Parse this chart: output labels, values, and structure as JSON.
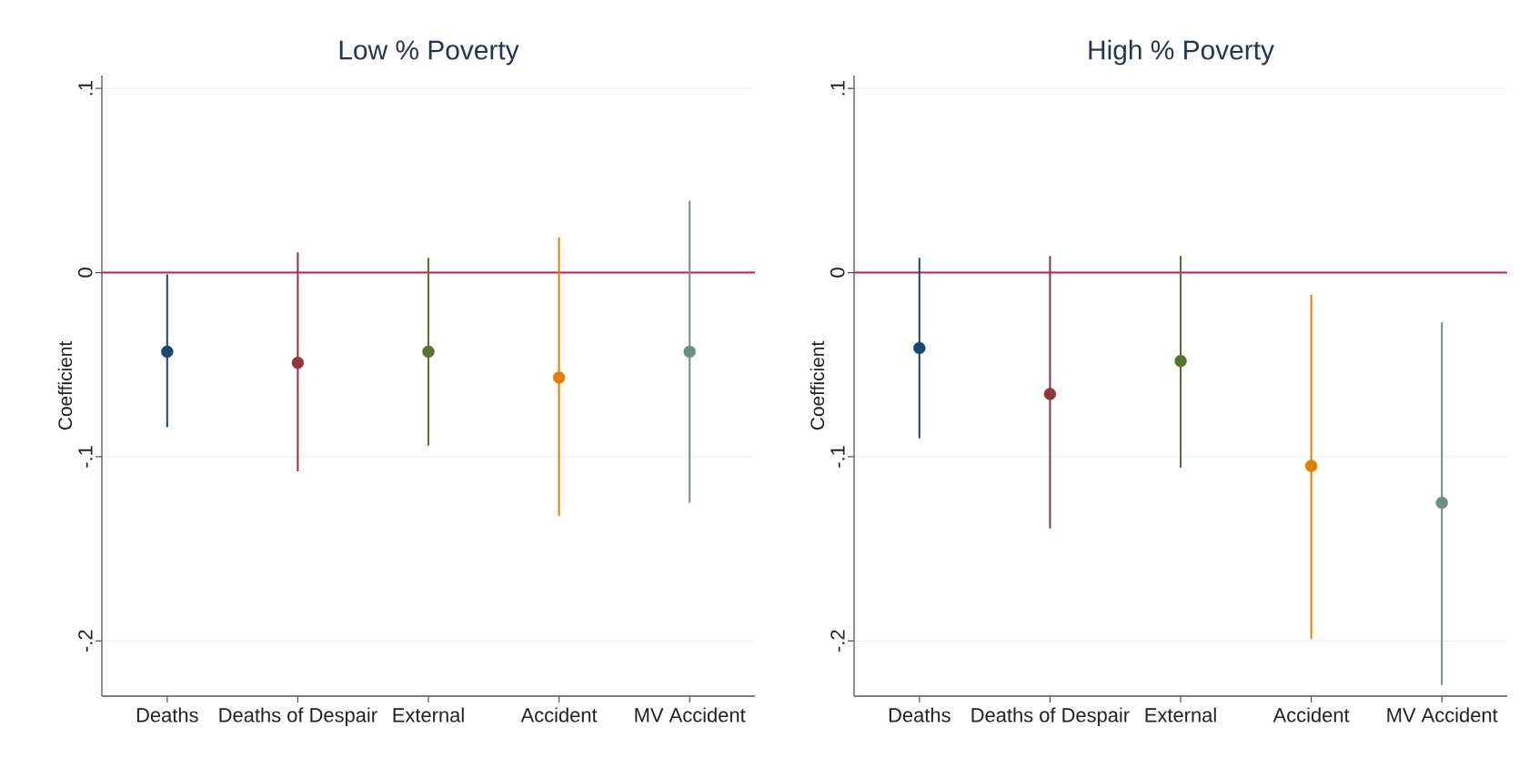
{
  "chart_data": [
    {
      "type": "scatter",
      "title": "Low % Poverty",
      "ylabel": "Coefficient",
      "categories": [
        "Deaths",
        "Deaths of Despair",
        "External",
        "Accident",
        "MV Accident"
      ],
      "values": [
        -0.043,
        -0.049,
        -0.043,
        -0.057,
        -0.043
      ],
      "errors": [
        [
          -0.084,
          -0.001
        ],
        [
          -0.108,
          0.011
        ],
        [
          -0.094,
          0.008
        ],
        [
          -0.132,
          0.019
        ],
        [
          -0.125,
          0.039
        ]
      ],
      "colors": [
        "#1a476f",
        "#90353b",
        "#55752f",
        "#e37e00",
        "#6e8e84"
      ],
      "ylim": [
        -0.23,
        0.107
      ],
      "yticks": [
        {
          "value": -0.2,
          "label": "-.2"
        },
        {
          "value": -0.1,
          "label": "-.1"
        },
        0,
        {
          "value": 0.1,
          "label": ".1"
        }
      ],
      "ref_lines": [
        {
          "axis": "y",
          "value": 0,
          "color": "#c41e4a"
        }
      ],
      "grid": "y",
      "marker": "circle"
    },
    {
      "type": "scatter",
      "title": "High % Poverty",
      "ylabel": "Coefficient",
      "categories": [
        "Deaths",
        "Deaths of Despair",
        "External",
        "Accident",
        "MV Accident"
      ],
      "values": [
        -0.041,
        -0.066,
        -0.048,
        -0.105,
        -0.125
      ],
      "errors": [
        [
          -0.09,
          0.008
        ],
        [
          -0.139,
          0.009
        ],
        [
          -0.106,
          0.009
        ],
        [
          -0.199,
          -0.012
        ],
        [
          -0.224,
          -0.027
        ]
      ],
      "colors": [
        "#1a476f",
        "#90353b",
        "#55752f",
        "#e37e00",
        "#6e8e84"
      ],
      "ylim": [
        -0.23,
        0.107
      ],
      "yticks": [
        {
          "value": -0.2,
          "label": "-.2"
        },
        {
          "value": -0.1,
          "label": "-.1"
        },
        0,
        {
          "value": 0.1,
          "label": ".1"
        }
      ],
      "ref_lines": [
        {
          "axis": "y",
          "value": 0,
          "color": "#c41e4a"
        }
      ],
      "grid": "y",
      "marker": "circle"
    }
  ]
}
